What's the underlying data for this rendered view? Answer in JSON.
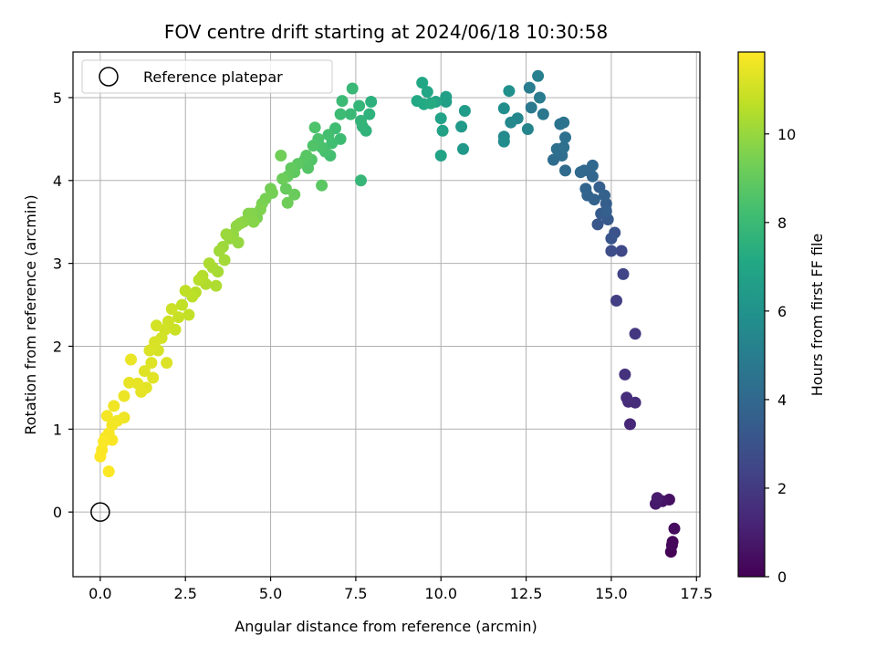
{
  "chart_data": {
    "type": "scatter",
    "title": "FOV centre drift starting at 2024/06/18 10:30:58",
    "xlabel": "Angular distance from reference (arcmin)",
    "ylabel": "Rotation from reference (arcmin)",
    "xlim": [
      -0.8,
      17.6
    ],
    "ylim": [
      -0.78,
      5.55
    ],
    "xticks": [
      0.0,
      2.5,
      5.0,
      7.5,
      10.0,
      12.5,
      15.0,
      17.5
    ],
    "xtick_labels": [
      "0.0",
      "2.5",
      "5.0",
      "7.5",
      "10.0",
      "12.5",
      "15.0",
      "17.5"
    ],
    "yticks": [
      0,
      1,
      2,
      3,
      4,
      5
    ],
    "ytick_labels": [
      "0",
      "1",
      "2",
      "3",
      "4",
      "5"
    ],
    "grid": true,
    "legend_placement": "top-left",
    "legend": [
      {
        "label": "Reference platepar",
        "marker": "open-circle"
      }
    ],
    "reference_point": {
      "x": 0.0,
      "y": 0.0
    },
    "colorbar": {
      "label": "Hours from first FF file",
      "range": [
        0,
        11.85
      ],
      "ticks": [
        0,
        2,
        4,
        6,
        8,
        10
      ],
      "tick_labels": [
        "0",
        "2",
        "4",
        "6",
        "8",
        "10"
      ],
      "colormap": "viridis"
    },
    "points": [
      {
        "x": 16.75,
        "y": -0.48,
        "t": 0.05
      },
      {
        "x": 16.8,
        "y": -0.36,
        "t": 0.15
      },
      {
        "x": 16.78,
        "y": -0.4,
        "t": 0.25
      },
      {
        "x": 16.85,
        "y": -0.2,
        "t": 0.35
      },
      {
        "x": 16.7,
        "y": 0.15,
        "t": 0.5
      },
      {
        "x": 16.5,
        "y": 0.13,
        "t": 0.65
      },
      {
        "x": 16.3,
        "y": 0.1,
        "t": 0.8
      },
      {
        "x": 16.35,
        "y": 0.17,
        "t": 0.9
      },
      {
        "x": 15.55,
        "y": 1.06,
        "t": 1.3
      },
      {
        "x": 15.5,
        "y": 1.33,
        "t": 1.45
      },
      {
        "x": 15.7,
        "y": 1.32,
        "t": 1.5
      },
      {
        "x": 15.45,
        "y": 1.38,
        "t": 1.55
      },
      {
        "x": 15.4,
        "y": 1.66,
        "t": 1.7
      },
      {
        "x": 15.7,
        "y": 2.15,
        "t": 1.9
      },
      {
        "x": 15.15,
        "y": 2.55,
        "t": 2.2
      },
      {
        "x": 15.35,
        "y": 2.87,
        "t": 2.4
      },
      {
        "x": 15.3,
        "y": 3.15,
        "t": 2.6
      },
      {
        "x": 15.0,
        "y": 3.15,
        "t": 2.8
      },
      {
        "x": 15.1,
        "y": 3.37,
        "t": 3.0
      },
      {
        "x": 15.0,
        "y": 3.3,
        "t": 3.1
      },
      {
        "x": 14.6,
        "y": 3.47,
        "t": 3.2
      },
      {
        "x": 14.9,
        "y": 3.53,
        "t": 3.3
      },
      {
        "x": 14.7,
        "y": 3.6,
        "t": 3.4
      },
      {
        "x": 14.85,
        "y": 3.72,
        "t": 3.5
      },
      {
        "x": 14.85,
        "y": 3.63,
        "t": 3.55
      },
      {
        "x": 14.65,
        "y": 3.92,
        "t": 3.6
      },
      {
        "x": 14.8,
        "y": 3.82,
        "t": 3.7
      },
      {
        "x": 14.5,
        "y": 3.77,
        "t": 3.75
      },
      {
        "x": 14.3,
        "y": 3.82,
        "t": 3.8
      },
      {
        "x": 14.25,
        "y": 3.9,
        "t": 3.85
      },
      {
        "x": 14.45,
        "y": 4.05,
        "t": 3.9
      },
      {
        "x": 14.2,
        "y": 4.12,
        "t": 3.95
      },
      {
        "x": 14.45,
        "y": 4.18,
        "t": 4.0
      },
      {
        "x": 14.1,
        "y": 4.1,
        "t": 4.05
      },
      {
        "x": 13.65,
        "y": 4.12,
        "t": 4.1
      },
      {
        "x": 13.3,
        "y": 4.25,
        "t": 4.2
      },
      {
        "x": 13.55,
        "y": 4.3,
        "t": 4.25
      },
      {
        "x": 13.4,
        "y": 4.38,
        "t": 4.3
      },
      {
        "x": 13.6,
        "y": 4.4,
        "t": 4.35
      },
      {
        "x": 13.65,
        "y": 4.52,
        "t": 4.4
      },
      {
        "x": 13.5,
        "y": 4.68,
        "t": 4.5
      },
      {
        "x": 13.6,
        "y": 4.7,
        "t": 4.55
      },
      {
        "x": 13.0,
        "y": 4.8,
        "t": 4.7
      },
      {
        "x": 12.65,
        "y": 4.88,
        "t": 4.8
      },
      {
        "x": 12.9,
        "y": 5.0,
        "t": 4.9
      },
      {
        "x": 12.6,
        "y": 5.12,
        "t": 5.0
      },
      {
        "x": 12.85,
        "y": 5.26,
        "t": 5.1
      },
      {
        "x": 12.55,
        "y": 4.62,
        "t": 5.3
      },
      {
        "x": 12.25,
        "y": 4.75,
        "t": 5.4
      },
      {
        "x": 12.05,
        "y": 4.7,
        "t": 5.5
      },
      {
        "x": 11.85,
        "y": 4.53,
        "t": 5.6
      },
      {
        "x": 11.85,
        "y": 4.47,
        "t": 5.7
      },
      {
        "x": 11.85,
        "y": 4.87,
        "t": 5.8
      },
      {
        "x": 12.0,
        "y": 5.08,
        "t": 5.9
      },
      {
        "x": 10.65,
        "y": 4.38,
        "t": 6.3
      },
      {
        "x": 10.6,
        "y": 4.65,
        "t": 6.4
      },
      {
        "x": 10.7,
        "y": 4.84,
        "t": 6.5
      },
      {
        "x": 10.15,
        "y": 4.95,
        "t": 6.6
      },
      {
        "x": 10.15,
        "y": 5.01,
        "t": 6.7
      },
      {
        "x": 10.05,
        "y": 4.6,
        "t": 6.75
      },
      {
        "x": 10.0,
        "y": 4.75,
        "t": 6.8
      },
      {
        "x": 10.0,
        "y": 4.3,
        "t": 6.85
      },
      {
        "x": 9.85,
        "y": 4.95,
        "t": 6.9
      },
      {
        "x": 9.6,
        "y": 5.07,
        "t": 7.0
      },
      {
        "x": 9.45,
        "y": 5.18,
        "t": 7.05
      },
      {
        "x": 9.3,
        "y": 4.96,
        "t": 7.1
      },
      {
        "x": 9.5,
        "y": 4.92,
        "t": 7.15
      },
      {
        "x": 9.7,
        "y": 4.93,
        "t": 7.2
      },
      {
        "x": 7.95,
        "y": 4.95,
        "t": 7.5
      },
      {
        "x": 7.9,
        "y": 4.8,
        "t": 7.6
      },
      {
        "x": 7.8,
        "y": 4.6,
        "t": 7.65
      },
      {
        "x": 7.7,
        "y": 4.65,
        "t": 7.7
      },
      {
        "x": 7.65,
        "y": 4.72,
        "t": 7.75
      },
      {
        "x": 7.6,
        "y": 4.9,
        "t": 7.8
      },
      {
        "x": 7.65,
        "y": 4.0,
        "t": 7.85
      },
      {
        "x": 7.4,
        "y": 5.11,
        "t": 7.9
      },
      {
        "x": 7.35,
        "y": 4.8,
        "t": 7.95
      },
      {
        "x": 7.1,
        "y": 4.96,
        "t": 8.0
      },
      {
        "x": 7.05,
        "y": 4.8,
        "t": 8.05
      },
      {
        "x": 7.05,
        "y": 4.5,
        "t": 8.1
      },
      {
        "x": 6.9,
        "y": 4.63,
        "t": 8.15
      },
      {
        "x": 6.8,
        "y": 4.45,
        "t": 8.2
      },
      {
        "x": 6.75,
        "y": 4.3,
        "t": 8.25
      },
      {
        "x": 6.7,
        "y": 4.55,
        "t": 8.3
      },
      {
        "x": 6.6,
        "y": 4.35,
        "t": 8.35
      },
      {
        "x": 6.5,
        "y": 4.4,
        "t": 8.4
      },
      {
        "x": 6.4,
        "y": 4.5,
        "t": 8.45
      },
      {
        "x": 6.3,
        "y": 4.64,
        "t": 8.5
      },
      {
        "x": 6.25,
        "y": 4.42,
        "t": 8.55
      },
      {
        "x": 6.2,
        "y": 4.25,
        "t": 8.6
      },
      {
        "x": 6.1,
        "y": 4.15,
        "t": 8.65
      },
      {
        "x": 6.0,
        "y": 4.25,
        "t": 8.7
      },
      {
        "x": 6.05,
        "y": 4.3,
        "t": 8.75
      },
      {
        "x": 6.5,
        "y": 3.94,
        "t": 8.8
      },
      {
        "x": 5.8,
        "y": 4.2,
        "t": 8.85
      },
      {
        "x": 5.7,
        "y": 4.1,
        "t": 8.9
      },
      {
        "x": 5.6,
        "y": 4.15,
        "t": 8.95
      },
      {
        "x": 5.5,
        "y": 4.05,
        "t": 9.0
      },
      {
        "x": 5.45,
        "y": 3.9,
        "t": 9.05
      },
      {
        "x": 5.7,
        "y": 3.83,
        "t": 9.1
      },
      {
        "x": 5.35,
        "y": 4.02,
        "t": 9.15
      },
      {
        "x": 5.5,
        "y": 3.73,
        "t": 9.2
      },
      {
        "x": 5.3,
        "y": 4.3,
        "t": 9.25
      },
      {
        "x": 5.0,
        "y": 3.9,
        "t": 9.3
      },
      {
        "x": 5.05,
        "y": 3.85,
        "t": 9.35
      },
      {
        "x": 4.85,
        "y": 3.78,
        "t": 9.4
      },
      {
        "x": 4.75,
        "y": 3.72,
        "t": 9.45
      },
      {
        "x": 4.6,
        "y": 3.55,
        "t": 9.5
      },
      {
        "x": 4.7,
        "y": 3.65,
        "t": 9.55
      },
      {
        "x": 4.45,
        "y": 3.6,
        "t": 9.6
      },
      {
        "x": 4.35,
        "y": 3.6,
        "t": 9.65
      },
      {
        "x": 4.5,
        "y": 3.5,
        "t": 9.7
      },
      {
        "x": 4.2,
        "y": 3.5,
        "t": 9.75
      },
      {
        "x": 4.1,
        "y": 3.48,
        "t": 9.8
      },
      {
        "x": 4.0,
        "y": 3.45,
        "t": 9.85
      },
      {
        "x": 3.9,
        "y": 3.35,
        "t": 9.9
      },
      {
        "x": 4.05,
        "y": 3.25,
        "t": 9.95
      },
      {
        "x": 3.8,
        "y": 3.3,
        "t": 10.0
      },
      {
        "x": 3.7,
        "y": 3.35,
        "t": 10.05
      },
      {
        "x": 3.6,
        "y": 3.2,
        "t": 10.1
      },
      {
        "x": 3.5,
        "y": 3.15,
        "t": 10.15
      },
      {
        "x": 3.65,
        "y": 3.04,
        "t": 10.2
      },
      {
        "x": 3.45,
        "y": 2.9,
        "t": 10.25
      },
      {
        "x": 3.3,
        "y": 2.95,
        "t": 10.3
      },
      {
        "x": 3.2,
        "y": 3.0,
        "t": 10.35
      },
      {
        "x": 3.4,
        "y": 2.73,
        "t": 10.4
      },
      {
        "x": 3.1,
        "y": 2.75,
        "t": 10.45
      },
      {
        "x": 3.0,
        "y": 2.85,
        "t": 10.5
      },
      {
        "x": 2.9,
        "y": 2.8,
        "t": 10.55
      },
      {
        "x": 2.8,
        "y": 2.65,
        "t": 10.6
      },
      {
        "x": 2.7,
        "y": 2.6,
        "t": 10.65
      },
      {
        "x": 2.5,
        "y": 2.67,
        "t": 10.7
      },
      {
        "x": 2.4,
        "y": 2.5,
        "t": 10.75
      },
      {
        "x": 2.6,
        "y": 2.38,
        "t": 10.8
      },
      {
        "x": 2.3,
        "y": 2.35,
        "t": 10.85
      },
      {
        "x": 2.2,
        "y": 2.2,
        "t": 10.9
      },
      {
        "x": 2.1,
        "y": 2.45,
        "t": 10.95
      },
      {
        "x": 2.0,
        "y": 2.3,
        "t": 11.0
      },
      {
        "x": 1.9,
        "y": 2.2,
        "t": 11.03
      },
      {
        "x": 1.8,
        "y": 2.1,
        "t": 11.06
      },
      {
        "x": 1.65,
        "y": 2.25,
        "t": 11.1
      },
      {
        "x": 1.7,
        "y": 1.95,
        "t": 11.13
      },
      {
        "x": 1.6,
        "y": 2.05,
        "t": 11.16
      },
      {
        "x": 1.45,
        "y": 1.95,
        "t": 11.2
      },
      {
        "x": 1.95,
        "y": 1.8,
        "t": 11.23
      },
      {
        "x": 1.5,
        "y": 1.8,
        "t": 11.26
      },
      {
        "x": 1.3,
        "y": 1.7,
        "t": 11.3
      },
      {
        "x": 1.55,
        "y": 1.62,
        "t": 11.33
      },
      {
        "x": 1.35,
        "y": 1.5,
        "t": 11.36
      },
      {
        "x": 1.2,
        "y": 1.45,
        "t": 11.4
      },
      {
        "x": 1.1,
        "y": 1.55,
        "t": 11.43
      },
      {
        "x": 0.85,
        "y": 1.56,
        "t": 11.46
      },
      {
        "x": 0.9,
        "y": 1.84,
        "t": 11.5
      },
      {
        "x": 0.7,
        "y": 1.4,
        "t": 11.53
      },
      {
        "x": 0.7,
        "y": 1.14,
        "t": 11.56
      },
      {
        "x": 0.4,
        "y": 1.28,
        "t": 11.6
      },
      {
        "x": 0.5,
        "y": 1.1,
        "t": 11.63
      },
      {
        "x": 0.35,
        "y": 1.05,
        "t": 11.66
      },
      {
        "x": 0.2,
        "y": 1.16,
        "t": 11.69
      },
      {
        "x": 0.25,
        "y": 0.95,
        "t": 11.72
      },
      {
        "x": 0.15,
        "y": 0.9,
        "t": 11.74
      },
      {
        "x": 0.35,
        "y": 0.87,
        "t": 11.76
      },
      {
        "x": 0.05,
        "y": 0.75,
        "t": 11.78
      },
      {
        "x": 0.1,
        "y": 0.85,
        "t": 11.8
      },
      {
        "x": 0.0,
        "y": 0.67,
        "t": 11.82
      },
      {
        "x": 0.25,
        "y": 0.49,
        "t": 11.84
      }
    ]
  }
}
